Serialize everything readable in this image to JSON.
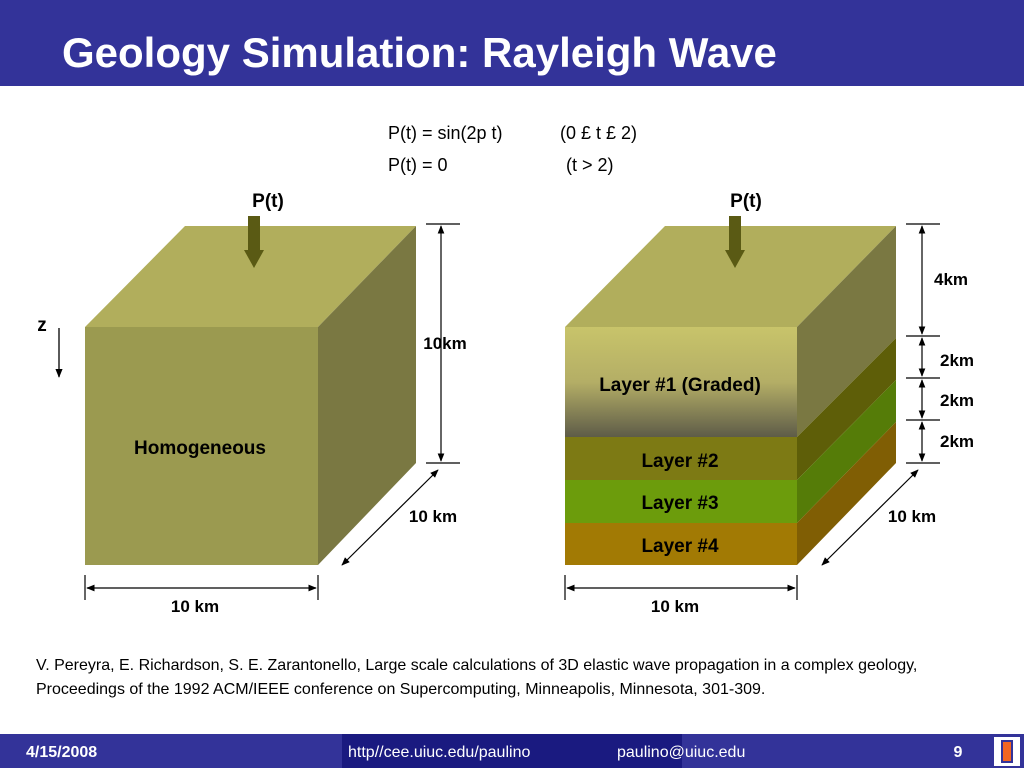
{
  "header": {
    "title": "Geology Simulation: Rayleigh Wave"
  },
  "equations": [
    {
      "lhs": "P(t) = sin(2p t)",
      "cond": "(0 £ t £ 2)"
    },
    {
      "lhs": "P(t) = 0",
      "cond": "(t > 2)"
    }
  ],
  "left_block": {
    "force": "P(t)",
    "axis": "z",
    "label": "Homogeneous",
    "height": "10km",
    "depth": "10 km",
    "width": "10 km"
  },
  "right_block": {
    "force": "P(t)",
    "layers": [
      "Layer #1 (Graded)",
      "Layer #2",
      "Layer #3",
      "Layer #4"
    ],
    "thicknesses": [
      "4km",
      "2km",
      "2km",
      "2km"
    ],
    "depth": "10 km",
    "width": "10 km"
  },
  "citation": "V. Pereyra, E. Richardson, S. E. Zarantonello, Large scale calculations of 3D elastic wave propagation in a complex geology, Proceedings of the 1992 ACM/IEEE conference on Supercomputing, Minneapolis, Minnesota, 301-309.",
  "footer": {
    "date": "4/15/2008",
    "url": "http//cee.uiuc.edu/paulino",
    "email": "paulino@uiuc.edu",
    "page": "9"
  }
}
